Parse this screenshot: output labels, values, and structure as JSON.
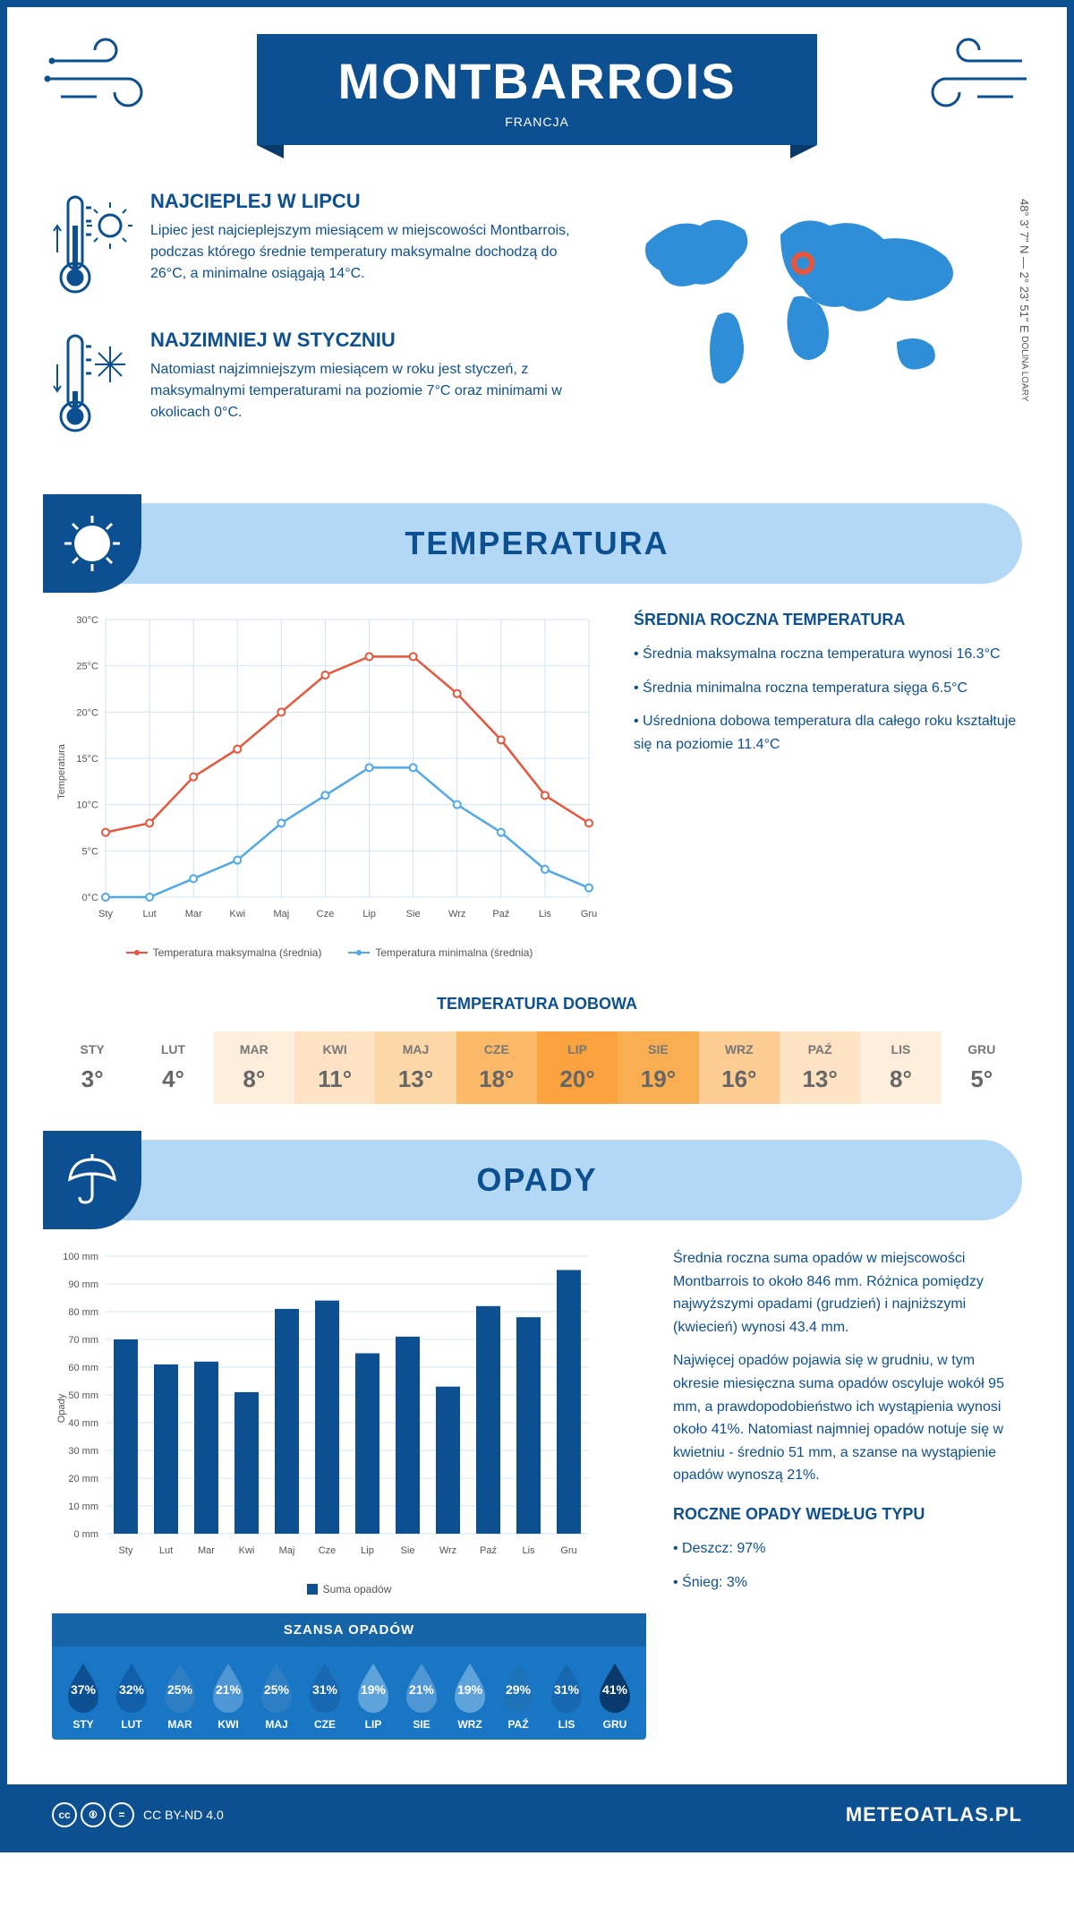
{
  "header": {
    "title": "MONTBARROIS",
    "country": "FRANCJA"
  },
  "facts": {
    "hot": {
      "title": "NAJCIEPLEJ W LIPCU",
      "text": "Lipiec jest najcieplejszym miesiącem w miejscowości Montbarrois, podczas którego średnie temperatury maksymalne dochodzą do 26°C, a minimalne osiągają 14°C."
    },
    "cold": {
      "title": "NAJZIMNIEJ W STYCZNIU",
      "text": "Natomiast najzimniejszym miesiącem w roku jest styczeń, z maksymalnymi temperaturami na poziomie 7°C oraz minimami w okolicach 0°C."
    }
  },
  "coords": {
    "line": "48° 3' 7\" N — 2° 23' 51\" E",
    "region": "DOLINA LOARY"
  },
  "sections": {
    "temp": "TEMPERATURA",
    "precip": "OPADY"
  },
  "months_short": [
    "Sty",
    "Lut",
    "Mar",
    "Kwi",
    "Maj",
    "Cze",
    "Lip",
    "Sie",
    "Wrz",
    "Paź",
    "Lis",
    "Gru"
  ],
  "months_upper": [
    "STY",
    "LUT",
    "MAR",
    "KWI",
    "MAJ",
    "CZE",
    "LIP",
    "SIE",
    "WRZ",
    "PAŹ",
    "LIS",
    "GRU"
  ],
  "temp_chart": {
    "type": "line",
    "ylabel": "Temperatura",
    "ylim": [
      0,
      30
    ],
    "ytick_step": 5,
    "max_series": {
      "label": "Temperatura maksymalna (średnia)",
      "color": "#e8553a",
      "values": [
        7,
        8,
        13,
        16,
        20,
        24,
        26,
        26,
        22,
        17,
        11,
        8
      ]
    },
    "min_series": {
      "label": "Temperatura minimalna (średnia)",
      "color": "#4fa8e8",
      "values": [
        0,
        0,
        2,
        4,
        8,
        11,
        14,
        14,
        10,
        7,
        3,
        1
      ]
    },
    "grid_color": "#d0e4f5",
    "background": "#ffffff"
  },
  "temp_info": {
    "title": "ŚREDNIA ROCZNA TEMPERATURA",
    "items": [
      "Średnia maksymalna roczna temperatura wynosi 16.3°C",
      "Średnia minimalna roczna temperatura sięga 6.5°C",
      "Uśredniona dobowa temperatura dla całego roku kształtuje się na poziomie 11.4°C"
    ]
  },
  "daily_temp": {
    "title": "TEMPERATURA DOBOWA",
    "values": [
      "3°",
      "4°",
      "8°",
      "11°",
      "13°",
      "18°",
      "20°",
      "19°",
      "16°",
      "13°",
      "8°",
      "5°"
    ],
    "colors": [
      "#ffffff",
      "#ffffff",
      "#fdeedc",
      "#fde3c4",
      "#fcd7a8",
      "#fbb968",
      "#f9a23e",
      "#faae52",
      "#fccc92",
      "#fde3c4",
      "#fdeedc",
      "#ffffff"
    ]
  },
  "precip_chart": {
    "type": "bar",
    "ylabel": "Opady",
    "ylim": [
      0,
      100
    ],
    "ytick_step": 10,
    "yunit": "mm",
    "values": [
      70,
      61,
      62,
      51,
      81,
      84,
      65,
      71,
      53,
      82,
      78,
      95
    ],
    "bar_color": "#0d5091",
    "grid_color": "#d0e4f5",
    "legend": "Suma opadów"
  },
  "precip_info": {
    "p1": "Średnia roczna suma opadów w miejscowości Montbarrois to około 846 mm. Różnica pomiędzy najwyższymi opadami (grudzień) i najniższymi (kwiecień) wynosi 43.4 mm.",
    "p2": "Najwięcej opadów pojawia się w grudniu, w tym okresie miesięczna suma opadów oscyluje wokół 95 mm, a prawdopodobieństwo ich wystąpienia wynosi około 41%. Natomiast najmniej opadów notuje się w kwietniu - średnio 51 mm, a szanse na wystąpienie opadów wynoszą 21%.",
    "type_title": "ROCZNE OPADY WEDŁUG TYPU",
    "types": [
      "Deszcz: 97%",
      "Śnieg: 3%"
    ]
  },
  "precip_chance": {
    "title": "SZANSA OPADÓW",
    "values": [
      "37%",
      "32%",
      "25%",
      "21%",
      "25%",
      "31%",
      "19%",
      "21%",
      "19%",
      "29%",
      "31%",
      "41%"
    ],
    "colors": [
      "#0d5091",
      "#115fa8",
      "#2e7ec4",
      "#4f96d4",
      "#2e7ec4",
      "#1768b0",
      "#5fa3db",
      "#4f96d4",
      "#5fa3db",
      "#1e72b8",
      "#1768b0",
      "#083a6b"
    ]
  },
  "footer": {
    "license": "CC BY-ND 4.0",
    "brand": "METEOATLAS.PL"
  }
}
